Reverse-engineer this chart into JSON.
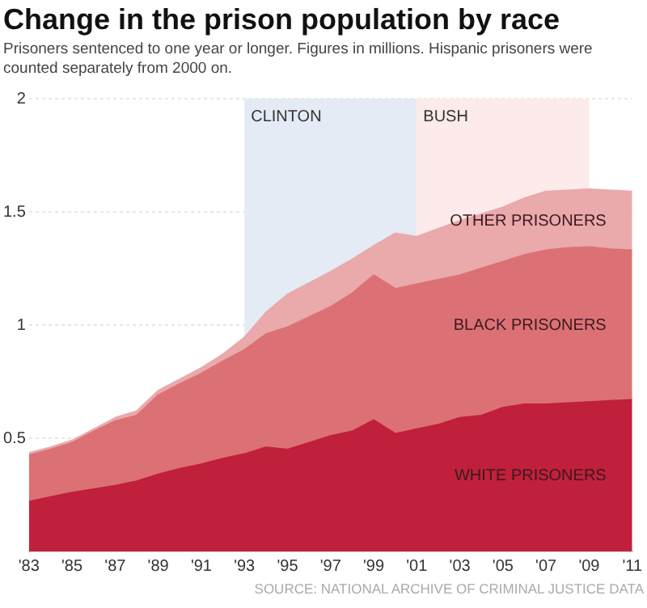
{
  "chart_data": {
    "type": "area",
    "stacked": true,
    "title": "Change in the prison population by race",
    "subtitle": "Prisoners sentenced to one year or longer. Figures in millions. Hispanic prisoners were counted separately from 2000 on.",
    "annotations": [
      "SOURCE: NATIONAL ARCHIVE OF CRIMINAL JUSTICE DATA"
    ],
    "x": [
      1983,
      1984,
      1985,
      1986,
      1987,
      1988,
      1989,
      1990,
      1991,
      1992,
      1993,
      1994,
      1995,
      1996,
      1997,
      1998,
      1999,
      2000,
      2001,
      2002,
      2003,
      2004,
      2005,
      2006,
      2007,
      2008,
      2009,
      2010,
      2011
    ],
    "series": [
      {
        "name": "WHITE PRISONERS",
        "color": "#c0203b",
        "values": [
          0.22,
          0.24,
          0.26,
          0.275,
          0.29,
          0.31,
          0.34,
          0.365,
          0.385,
          0.41,
          0.43,
          0.46,
          0.45,
          0.48,
          0.51,
          0.53,
          0.58,
          0.52,
          0.54,
          0.56,
          0.59,
          0.6,
          0.635,
          0.65,
          0.65,
          0.655,
          0.66,
          0.665,
          0.67
        ]
      },
      {
        "name": "BLACK PRISONERS",
        "color": "#dc7175",
        "values": [
          0.205,
          0.21,
          0.22,
          0.255,
          0.285,
          0.29,
          0.35,
          0.375,
          0.4,
          0.43,
          0.46,
          0.5,
          0.54,
          0.555,
          0.57,
          0.61,
          0.64,
          0.64,
          0.64,
          0.64,
          0.63,
          0.65,
          0.645,
          0.66,
          0.68,
          0.685,
          0.685,
          0.67,
          0.66
        ]
      },
      {
        "name": "OTHER PRISONERS",
        "color": "#eaa9ab",
        "values": [
          0.01,
          0.01,
          0.01,
          0.01,
          0.015,
          0.02,
          0.02,
          0.02,
          0.025,
          0.03,
          0.055,
          0.095,
          0.145,
          0.15,
          0.155,
          0.15,
          0.13,
          0.245,
          0.21,
          0.225,
          0.24,
          0.24,
          0.24,
          0.25,
          0.26,
          0.255,
          0.255,
          0.26,
          0.26
        ]
      }
    ],
    "xlim": [
      1983,
      2011
    ],
    "xticks": [
      {
        "value": 1983,
        "label": "'83"
      },
      {
        "value": 1985,
        "label": "'85"
      },
      {
        "value": 1987,
        "label": "'87"
      },
      {
        "value": 1989,
        "label": "'89"
      },
      {
        "value": 1991,
        "label": "'91"
      },
      {
        "value": 1993,
        "label": "'93"
      },
      {
        "value": 1995,
        "label": "'95"
      },
      {
        "value": 1997,
        "label": "'97"
      },
      {
        "value": 1999,
        "label": "'99"
      },
      {
        "value": 2001,
        "label": "'01"
      },
      {
        "value": 2003,
        "label": "'03"
      },
      {
        "value": 2005,
        "label": "'05"
      },
      {
        "value": 2007,
        "label": "'07"
      },
      {
        "value": 2009,
        "label": "'09"
      },
      {
        "value": 2011,
        "label": "'11"
      }
    ],
    "ylim": [
      0,
      2
    ],
    "yticks": [
      0.5,
      1,
      1.5,
      2
    ],
    "bands": [
      {
        "axis": "x",
        "from": 1993,
        "to": 2001,
        "label": "CLINTON",
        "color": "#e4ebf5"
      },
      {
        "axis": "x",
        "from": 2001,
        "to": 2009,
        "label": "BUSH",
        "color": "#fdeaea"
      }
    ],
    "grid": "y",
    "legend": false,
    "marker": "none",
    "line_style": "solid"
  }
}
